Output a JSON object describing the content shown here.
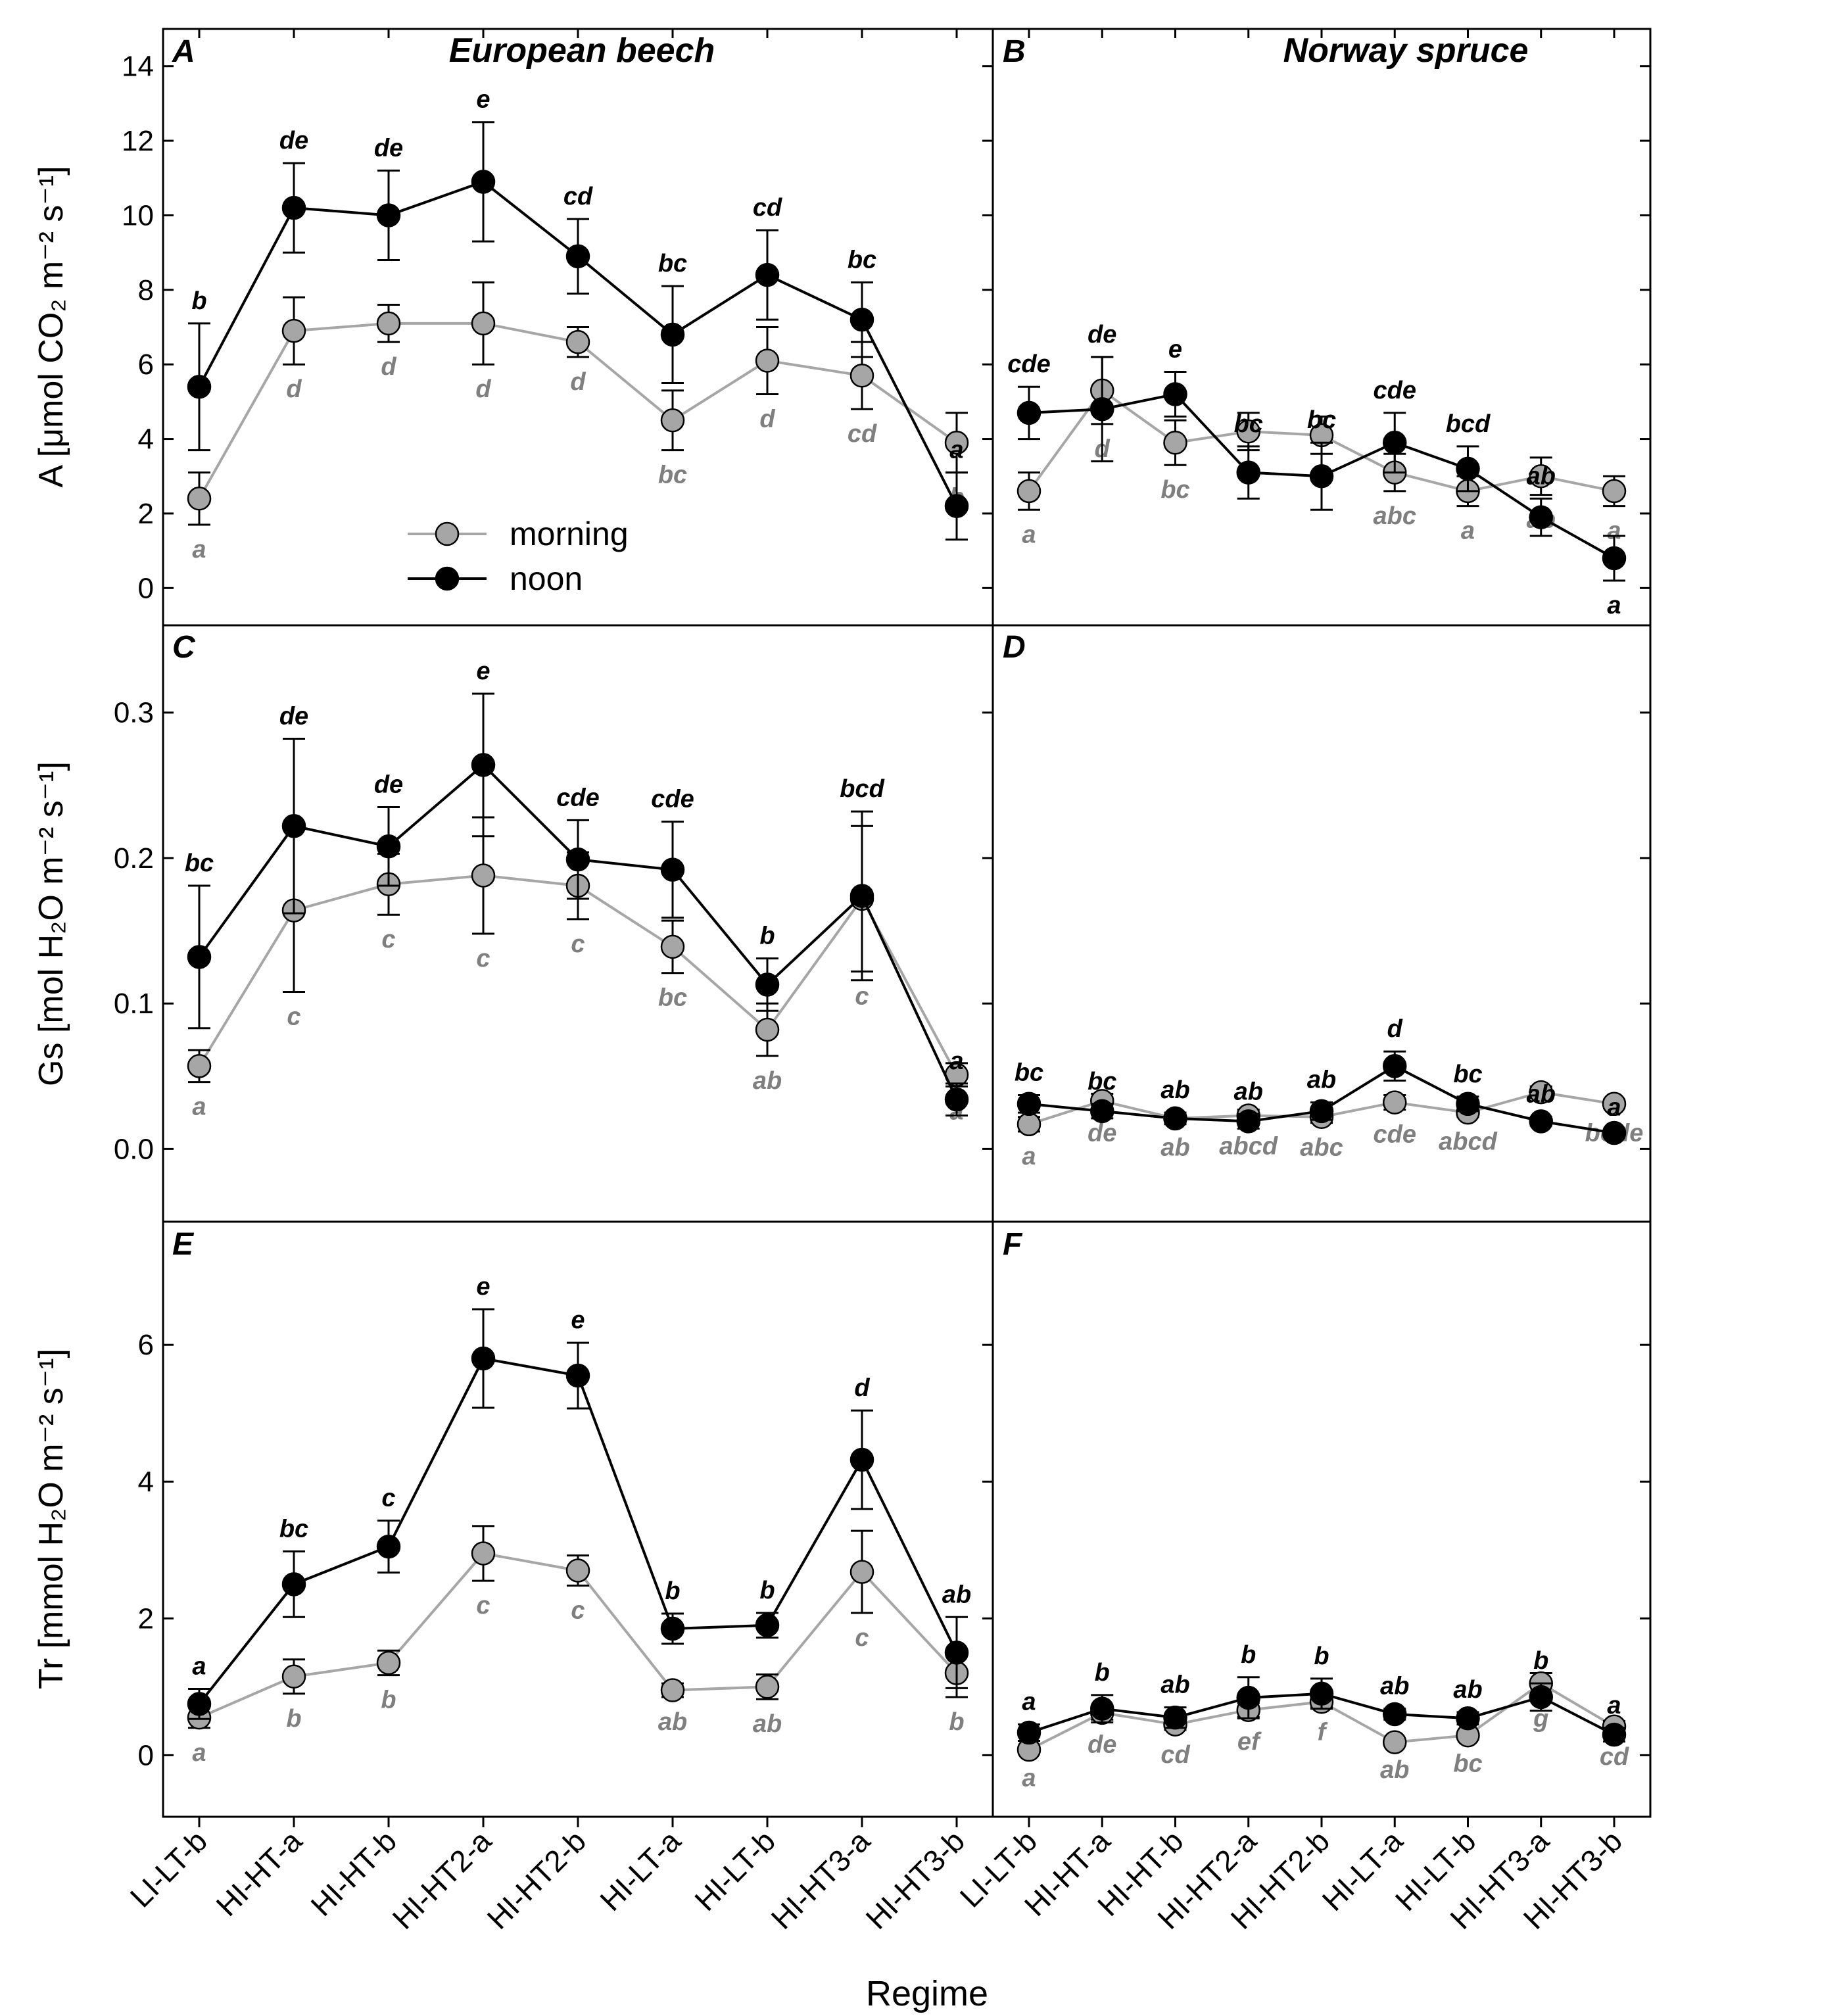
{
  "x_axis_label": "Regime",
  "categories": [
    "LI-LT-b",
    "HI-HT-a",
    "HI-HT-b",
    "HI-HT2-a",
    "HI-HT2-b",
    "HI-LT-a",
    "HI-LT-b",
    "HI-HT3-a",
    "HI-HT3-b"
  ],
  "legend": {
    "morning": "morning",
    "noon": "noon"
  },
  "colors": {
    "morning_fill": "#a6a6a6",
    "morning_line": "#a6a6a6",
    "morning_label": "#7f7f7f",
    "noon_fill": "#000000",
    "noon_line": "#000000",
    "noon_label": "#000000"
  },
  "rows": [
    {
      "ylabel": "A [μmol CO₂ m⁻² s⁻¹]",
      "ylim": [
        -1,
        15
      ],
      "ticks": [
        0,
        2,
        4,
        6,
        8,
        10,
        12,
        14
      ],
      "tick_labels": [
        "0",
        "2",
        "4",
        "6",
        "8",
        "10",
        "12",
        "14"
      ]
    },
    {
      "ylabel": "Gs [mol H₂O m⁻² s⁻¹]",
      "ylim": [
        -0.05,
        0.36
      ],
      "ticks": [
        0.0,
        0.1,
        0.2,
        0.3
      ],
      "tick_labels": [
        "0.0",
        "0.1",
        "0.2",
        "0.3"
      ]
    },
    {
      "ylabel": "Tr [mmol H₂O m⁻² s⁻¹]",
      "ylim": [
        -0.9,
        7.8
      ],
      "ticks": [
        0,
        2,
        4,
        6
      ],
      "tick_labels": [
        "0",
        "2",
        "4",
        "6"
      ]
    }
  ],
  "chart_data": [
    {
      "panel": "A",
      "title": "European beech",
      "row": 0,
      "col": 0,
      "type": "line",
      "series": [
        {
          "name": "morning",
          "values": [
            2.4,
            6.9,
            7.1,
            7.1,
            6.6,
            4.5,
            6.1,
            5.7,
            3.9
          ],
          "errors": [
            0.7,
            0.9,
            0.5,
            1.1,
            0.4,
            0.8,
            0.9,
            0.9,
            0.8
          ],
          "letters": [
            "a",
            "d",
            "d",
            "d",
            "d",
            "bc",
            "d",
            "cd",
            "b"
          ]
        },
        {
          "name": "noon",
          "values": [
            5.4,
            10.2,
            10.0,
            10.9,
            8.9,
            6.8,
            8.4,
            7.2,
            2.2
          ],
          "errors": [
            1.7,
            1.2,
            1.2,
            1.6,
            1.0,
            1.3,
            1.2,
            1.0,
            0.9
          ],
          "letters": [
            "b",
            "de",
            "de",
            "e",
            "cd",
            "bc",
            "cd",
            "bc",
            "a"
          ]
        }
      ]
    },
    {
      "panel": "B",
      "title": "Norway spruce",
      "row": 0,
      "col": 1,
      "type": "line",
      "series": [
        {
          "name": "morning",
          "values": [
            2.6,
            5.3,
            3.9,
            4.2,
            4.1,
            3.1,
            2.6,
            3.0,
            2.6
          ],
          "errors": [
            0.5,
            0.9,
            0.6,
            0.5,
            0.5,
            0.5,
            0.4,
            0.5,
            0.4
          ],
          "letters": [
            "a",
            "d",
            "bc",
            "c",
            "c",
            "abc",
            "a",
            "ab",
            "a"
          ]
        },
        {
          "name": "noon",
          "values": [
            4.7,
            4.8,
            5.2,
            3.1,
            3.0,
            3.9,
            3.2,
            1.9,
            0.8
          ],
          "errors": [
            0.7,
            1.4,
            0.6,
            0.7,
            0.9,
            0.8,
            0.6,
            0.5,
            0.6
          ],
          "letters": [
            "cde",
            "de",
            "e",
            "bc",
            "bc",
            "cde",
            "bcd",
            "ab",
            "a"
          ]
        }
      ]
    },
    {
      "panel": "C",
      "title": "",
      "row": 1,
      "col": 0,
      "type": "line",
      "series": [
        {
          "name": "morning",
          "values": [
            0.057,
            0.164,
            0.182,
            0.188,
            0.181,
            0.139,
            0.082,
            0.172,
            0.051
          ],
          "errors": [
            0.011,
            0.056,
            0.021,
            0.04,
            0.023,
            0.018,
            0.018,
            0.05,
            0.008
          ],
          "letters": [
            "a",
            "c",
            "c",
            "c",
            "c",
            "bc",
            "ab",
            "c",
            "a"
          ]
        },
        {
          "name": "noon",
          "values": [
            0.132,
            0.222,
            0.208,
            0.264,
            0.199,
            0.192,
            0.113,
            0.174,
            0.034
          ],
          "errors": [
            0.049,
            0.06,
            0.027,
            0.049,
            0.027,
            0.033,
            0.018,
            0.058,
            0.011
          ],
          "letters": [
            "bc",
            "de",
            "de",
            "e",
            "cde",
            "cde",
            "b",
            "bcd",
            "a"
          ]
        }
      ]
    },
    {
      "panel": "D",
      "title": "",
      "row": 1,
      "col": 1,
      "type": "line",
      "series": [
        {
          "name": "morning",
          "values": [
            0.017,
            0.033,
            0.021,
            0.023,
            0.022,
            0.032,
            0.025,
            0.039,
            0.031
          ],
          "errors": [
            0.005,
            0.005,
            0.003,
            0.004,
            0.004,
            0.005,
            0.003,
            0.004,
            0.003
          ],
          "letters": [
            "a",
            "de",
            "ab",
            "abcd",
            "abc",
            "cde",
            "abcd",
            "e",
            "bcde"
          ]
        },
        {
          "name": "noon",
          "values": [
            0.031,
            0.026,
            0.021,
            0.019,
            0.026,
            0.057,
            0.031,
            0.019,
            0.011
          ],
          "errors": [
            0.006,
            0.005,
            0.004,
            0.005,
            0.006,
            0.01,
            0.005,
            0.003,
            0.002
          ],
          "letters": [
            "bc",
            "bc",
            "ab",
            "ab",
            "ab",
            "d",
            "bc",
            "ab",
            "a"
          ]
        }
      ]
    },
    {
      "panel": "E",
      "title": "",
      "row": 2,
      "col": 0,
      "type": "line",
      "series": [
        {
          "name": "morning",
          "values": [
            0.55,
            1.15,
            1.35,
            2.95,
            2.7,
            0.95,
            1.0,
            2.68,
            1.2
          ],
          "errors": [
            0.15,
            0.25,
            0.18,
            0.4,
            0.22,
            0.1,
            0.18,
            0.6,
            0.35
          ],
          "letters": [
            "a",
            "b",
            "b",
            "c",
            "c",
            "ab",
            "ab",
            "c",
            "b"
          ]
        },
        {
          "name": "noon",
          "values": [
            0.75,
            2.5,
            3.05,
            5.8,
            5.55,
            1.85,
            1.9,
            4.32,
            1.5
          ],
          "errors": [
            0.22,
            0.48,
            0.38,
            0.72,
            0.48,
            0.22,
            0.18,
            0.72,
            0.52
          ],
          "letters": [
            "a",
            "bc",
            "c",
            "e",
            "e",
            "b",
            "b",
            "d",
            "ab"
          ]
        }
      ]
    },
    {
      "panel": "F",
      "title": "",
      "row": 2,
      "col": 1,
      "type": "line",
      "series": [
        {
          "name": "morning",
          "values": [
            0.08,
            0.62,
            0.45,
            0.66,
            0.78,
            0.19,
            0.29,
            1.05,
            0.42
          ],
          "errors": [
            0.05,
            0.1,
            0.08,
            0.1,
            0.08,
            0.04,
            0.05,
            0.15,
            0.08
          ],
          "letters": [
            "a",
            "de",
            "cd",
            "ef",
            "f",
            "ab",
            "bc",
            "g",
            "cd"
          ]
        },
        {
          "name": "noon",
          "values": [
            0.33,
            0.68,
            0.55,
            0.84,
            0.9,
            0.6,
            0.54,
            0.85,
            0.3
          ],
          "errors": [
            0.12,
            0.2,
            0.15,
            0.3,
            0.22,
            0.08,
            0.09,
            0.2,
            0.1
          ],
          "letters": [
            "a",
            "b",
            "ab",
            "b",
            "b",
            "ab",
            "ab",
            "b",
            "a"
          ]
        }
      ]
    }
  ]
}
